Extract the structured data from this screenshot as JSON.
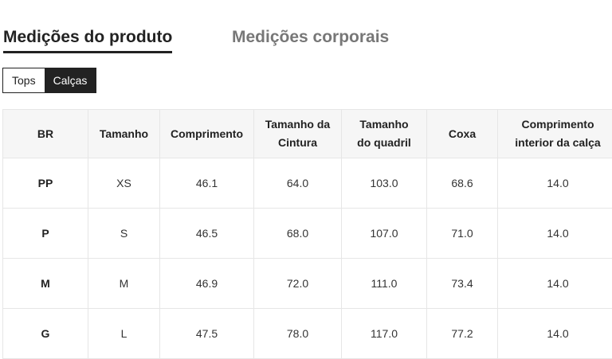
{
  "tabs": [
    "Medições do produto",
    "Medições corporais"
  ],
  "sub_tabs": [
    "Tops",
    "Calças"
  ],
  "table": {
    "headers": [
      "BR",
      "Tamanho",
      "Comprimento",
      "Tamanho da Cintura",
      "Tamanho do quadril",
      "Coxa",
      "Comprimento interior da calça"
    ],
    "rows": [
      [
        "PP",
        "XS",
        "46.1",
        "64.0",
        "103.0",
        "68.6",
        "14.0"
      ],
      [
        "P",
        "S",
        "46.5",
        "68.0",
        "107.0",
        "71.0",
        "14.0"
      ],
      [
        "M",
        "M",
        "46.9",
        "72.0",
        "111.0",
        "73.4",
        "14.0"
      ],
      [
        "G",
        "L",
        "47.5",
        "78.0",
        "117.0",
        "77.2",
        "14.0"
      ]
    ]
  }
}
